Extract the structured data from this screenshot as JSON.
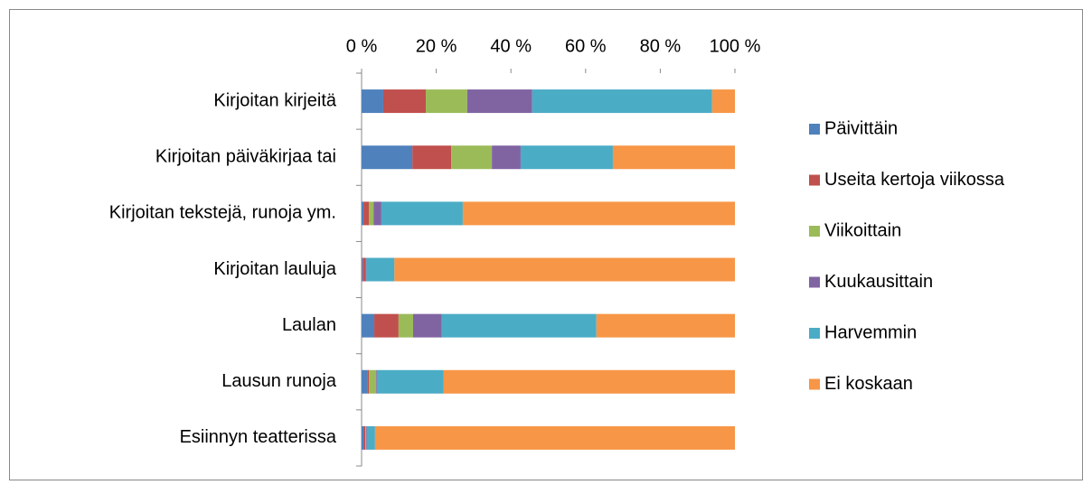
{
  "chart_data": {
    "type": "bar",
    "orientation": "horizontal",
    "stacked": true,
    "categories": [
      "Kirjoitan kirjeitä",
      "Kirjoitan päiväkirjaa tai",
      "Kirjoitan tekstejä, runoja ym.",
      "Kirjoitan lauluja",
      "Laulan",
      "Lausun runoja",
      "Esiinnyn teatterissa"
    ],
    "series": [
      {
        "name": "Päivittäin",
        "color": "#4f81bd",
        "values": [
          5.8,
          13.6,
          0.5,
          0.3,
          3.4,
          1.5,
          0.5
        ]
      },
      {
        "name": "Useita kertoja viikossa",
        "color": "#c0504d",
        "values": [
          11.4,
          10.4,
          1.5,
          0.7,
          6.5,
          0.5,
          0.5
        ]
      },
      {
        "name": "Viikoittain",
        "color": "#9bbb59",
        "values": [
          11.1,
          10.9,
          1.2,
          0,
          3.9,
          1.9,
          0.2
        ]
      },
      {
        "name": "Kuukausittain",
        "color": "#8064a2",
        "values": [
          17.4,
          7.7,
          2.1,
          0.3,
          7.7,
          0.2,
          0.2
        ]
      },
      {
        "name": "Harvemmin",
        "color": "#4bacc6",
        "values": [
          48.2,
          24.7,
          21.8,
          7.5,
          41.4,
          17.9,
          2.2
        ]
      },
      {
        "name": "Ei koskaan",
        "color": "#f79646",
        "values": [
          6.1,
          32.7,
          72.9,
          91.2,
          37.1,
          78.0,
          96.4
        ]
      }
    ],
    "xlim": [
      0,
      100
    ],
    "xticks": [
      {
        "value": 0,
        "label": "0 %"
      },
      {
        "value": 20,
        "label": "20 %"
      },
      {
        "value": 40,
        "label": "40 %"
      },
      {
        "value": 60,
        "label": "60 %"
      },
      {
        "value": 80,
        "label": "80 %"
      },
      {
        "value": 100,
        "label": "100 %"
      }
    ],
    "legend": "right"
  }
}
